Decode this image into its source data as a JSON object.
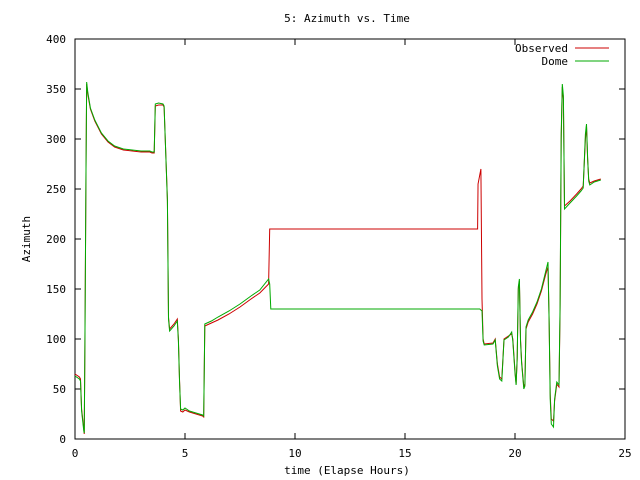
{
  "chart_data": {
    "type": "line",
    "title": "5: Azimuth vs. Time",
    "xlabel": "time (Elapse Hours)",
    "ylabel": "Azimuth",
    "xlim": [
      0,
      25
    ],
    "ylim": [
      0,
      400
    ],
    "x_ticks": [
      "0",
      "5",
      "10",
      "15",
      "20",
      "25"
    ],
    "y_ticks": [
      "0",
      "50",
      "100",
      "150",
      "200",
      "250",
      "300",
      "350",
      "400"
    ],
    "grid": false,
    "legend_position": "top-right",
    "series": [
      {
        "name": "Observed",
        "color": "#cc0000",
        "points": [
          [
            0.0,
            65
          ],
          [
            0.2,
            62
          ],
          [
            0.25,
            60
          ],
          [
            0.3,
            30
          ],
          [
            0.4,
            10
          ],
          [
            0.42,
            5
          ],
          [
            0.45,
            95
          ],
          [
            0.5,
            268
          ],
          [
            0.53,
            355
          ],
          [
            0.58,
            345
          ],
          [
            0.7,
            330
          ],
          [
            0.9,
            318
          ],
          [
            1.2,
            305
          ],
          [
            1.5,
            297
          ],
          [
            1.8,
            292
          ],
          [
            2.2,
            289
          ],
          [
            2.6,
            288
          ],
          [
            3.0,
            287
          ],
          [
            3.4,
            287
          ],
          [
            3.5,
            286
          ],
          [
            3.6,
            286
          ],
          [
            3.65,
            333
          ],
          [
            3.8,
            334
          ],
          [
            4.0,
            334
          ],
          [
            4.05,
            332
          ],
          [
            4.2,
            240
          ],
          [
            4.25,
            122
          ],
          [
            4.3,
            110
          ],
          [
            4.5,
            115
          ],
          [
            4.65,
            120
          ],
          [
            4.7,
            100
          ],
          [
            4.75,
            60
          ],
          [
            4.8,
            28
          ],
          [
            4.9,
            27
          ],
          [
            5.0,
            29
          ],
          [
            5.2,
            27
          ],
          [
            5.5,
            25
          ],
          [
            5.8,
            23
          ],
          [
            5.85,
            22
          ],
          [
            5.9,
            113
          ],
          [
            6.2,
            116
          ],
          [
            6.5,
            119
          ],
          [
            7.0,
            125
          ],
          [
            7.5,
            132
          ],
          [
            8.0,
            140
          ],
          [
            8.4,
            146
          ],
          [
            8.8,
            155
          ],
          [
            8.85,
            210
          ],
          [
            10.0,
            210
          ],
          [
            12.0,
            210
          ],
          [
            14.0,
            210
          ],
          [
            16.0,
            210
          ],
          [
            18.0,
            210
          ],
          [
            18.3,
            210
          ],
          [
            18.32,
            255
          ],
          [
            18.45,
            270
          ],
          [
            18.5,
            140
          ],
          [
            18.55,
            100
          ],
          [
            18.6,
            95
          ],
          [
            19.0,
            96
          ],
          [
            19.1,
            100
          ],
          [
            19.2,
            75
          ],
          [
            19.3,
            62
          ],
          [
            19.4,
            60
          ],
          [
            19.5,
            100
          ],
          [
            19.7,
            103
          ],
          [
            19.85,
            105
          ],
          [
            19.9,
            100
          ],
          [
            20.0,
            68
          ],
          [
            20.05,
            55
          ],
          [
            20.1,
            80
          ],
          [
            20.15,
            150
          ],
          [
            20.2,
            158
          ],
          [
            20.25,
            100
          ],
          [
            20.3,
            78
          ],
          [
            20.4,
            52
          ],
          [
            20.45,
            55
          ],
          [
            20.5,
            110
          ],
          [
            20.6,
            117
          ],
          [
            20.8,
            125
          ],
          [
            21.0,
            135
          ],
          [
            21.2,
            148
          ],
          [
            21.4,
            165
          ],
          [
            21.5,
            172
          ],
          [
            21.55,
            120
          ],
          [
            21.6,
            45
          ],
          [
            21.65,
            20
          ],
          [
            21.75,
            18
          ],
          [
            21.8,
            38
          ],
          [
            21.9,
            55
          ],
          [
            22.0,
            52
          ],
          [
            22.05,
            130
          ],
          [
            22.1,
            300
          ],
          [
            22.15,
            352
          ],
          [
            22.2,
            340
          ],
          [
            22.25,
            233
          ],
          [
            22.5,
            238
          ],
          [
            22.8,
            245
          ],
          [
            23.0,
            250
          ],
          [
            23.1,
            253
          ],
          [
            23.2,
            300
          ],
          [
            23.25,
            313
          ],
          [
            23.3,
            280
          ],
          [
            23.35,
            260
          ],
          [
            23.4,
            256
          ],
          [
            23.6,
            258
          ],
          [
            23.9,
            260
          ]
        ]
      },
      {
        "name": "Dome",
        "color": "#00aa00",
        "points": [
          [
            0.0,
            63
          ],
          [
            0.2,
            60
          ],
          [
            0.25,
            58
          ],
          [
            0.3,
            28
          ],
          [
            0.4,
            8
          ],
          [
            0.42,
            6
          ],
          [
            0.45,
            92
          ],
          [
            0.5,
            270
          ],
          [
            0.53,
            357
          ],
          [
            0.58,
            347
          ],
          [
            0.7,
            331
          ],
          [
            0.9,
            319
          ],
          [
            1.2,
            306
          ],
          [
            1.5,
            298
          ],
          [
            1.8,
            293
          ],
          [
            2.2,
            290
          ],
          [
            2.6,
            289
          ],
          [
            3.0,
            288
          ],
          [
            3.4,
            288
          ],
          [
            3.5,
            287
          ],
          [
            3.6,
            287
          ],
          [
            3.65,
            335
          ],
          [
            3.8,
            336
          ],
          [
            4.0,
            335
          ],
          [
            4.05,
            333
          ],
          [
            4.2,
            238
          ],
          [
            4.25,
            120
          ],
          [
            4.3,
            108
          ],
          [
            4.5,
            113
          ],
          [
            4.65,
            118
          ],
          [
            4.7,
            98
          ],
          [
            4.75,
            58
          ],
          [
            4.8,
            30
          ],
          [
            4.9,
            29
          ],
          [
            5.0,
            31
          ],
          [
            5.2,
            28
          ],
          [
            5.5,
            26
          ],
          [
            5.8,
            24
          ],
          [
            5.85,
            23
          ],
          [
            5.9,
            115
          ],
          [
            6.2,
            118
          ],
          [
            6.5,
            122
          ],
          [
            7.0,
            128
          ],
          [
            7.5,
            135
          ],
          [
            8.0,
            143
          ],
          [
            8.4,
            149
          ],
          [
            8.8,
            160
          ],
          [
            8.85,
            155
          ],
          [
            8.9,
            130
          ],
          [
            10.0,
            130
          ],
          [
            12.0,
            130
          ],
          [
            14.0,
            130
          ],
          [
            16.0,
            130
          ],
          [
            18.0,
            130
          ],
          [
            18.4,
            130
          ],
          [
            18.5,
            128
          ],
          [
            18.55,
            98
          ],
          [
            18.6,
            94
          ],
          [
            19.0,
            95
          ],
          [
            19.1,
            99
          ],
          [
            19.2,
            73
          ],
          [
            19.3,
            60
          ],
          [
            19.4,
            58
          ],
          [
            19.5,
            99
          ],
          [
            19.7,
            102
          ],
          [
            19.85,
            107
          ],
          [
            19.9,
            98
          ],
          [
            20.0,
            66
          ],
          [
            20.05,
            54
          ],
          [
            20.1,
            82
          ],
          [
            20.15,
            152
          ],
          [
            20.2,
            160
          ],
          [
            20.25,
            98
          ],
          [
            20.3,
            76
          ],
          [
            20.4,
            50
          ],
          [
            20.45,
            53
          ],
          [
            20.5,
            112
          ],
          [
            20.6,
            119
          ],
          [
            20.8,
            127
          ],
          [
            21.0,
            137
          ],
          [
            21.2,
            150
          ],
          [
            21.4,
            168
          ],
          [
            21.5,
            177
          ],
          [
            21.55,
            118
          ],
          [
            21.6,
            40
          ],
          [
            21.65,
            15
          ],
          [
            21.75,
            12
          ],
          [
            21.8,
            40
          ],
          [
            21.9,
            57
          ],
          [
            22.0,
            54
          ],
          [
            22.05,
            135
          ],
          [
            22.1,
            305
          ],
          [
            22.15,
            355
          ],
          [
            22.2,
            343
          ],
          [
            22.25,
            230
          ],
          [
            22.5,
            236
          ],
          [
            22.8,
            243
          ],
          [
            23.0,
            248
          ],
          [
            23.1,
            251
          ],
          [
            23.2,
            305
          ],
          [
            23.25,
            315
          ],
          [
            23.3,
            282
          ],
          [
            23.35,
            258
          ],
          [
            23.4,
            254
          ],
          [
            23.6,
            257
          ],
          [
            23.9,
            259
          ]
        ]
      }
    ]
  }
}
